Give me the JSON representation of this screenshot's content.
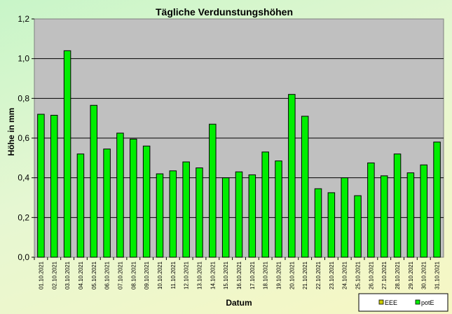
{
  "chart_data": {
    "type": "bar",
    "title": "Tägliche Verdunstungshöhen",
    "xlabel": "Datum",
    "ylabel": "Höhe in mm",
    "ylim": [
      0,
      1.2
    ],
    "yticks": [
      "0,0",
      "0,2",
      "0,4",
      "0,6",
      "0,8",
      "1,0",
      "1,2"
    ],
    "grid": true,
    "legend_position": "bottom-right",
    "categories": [
      "01.10.2021",
      "02.10.2021",
      "03.10.2021",
      "04.10.2021",
      "05.10.2021",
      "06.10.2021",
      "07.10.2021",
      "08.10.2021",
      "09.10.2021",
      "10.10.2021",
      "11.10.2021",
      "12.10.2021",
      "13.10.2021",
      "14.10.2021",
      "15.10.2021",
      "16.10.2021",
      "17.10.2021",
      "18.10.2021",
      "19.10.2021",
      "20.10.2021",
      "21.10.2021",
      "22.10.2021",
      "23.10.2021",
      "24.10.2021",
      "25.10.2021",
      "26.10.2021",
      "27.10.2021",
      "28.10.2021",
      "29.10.2021",
      "30.10.2021",
      "31.10.2021"
    ],
    "series": [
      {
        "name": "EEE",
        "color": "#cccc00",
        "values": [
          null,
          null,
          null,
          null,
          null,
          null,
          null,
          null,
          null,
          null,
          null,
          null,
          null,
          null,
          null,
          null,
          null,
          null,
          null,
          null,
          null,
          null,
          null,
          null,
          null,
          null,
          null,
          null,
          null,
          null,
          null
        ]
      },
      {
        "name": "potE",
        "color": "#00ee00",
        "values": [
          0.72,
          0.715,
          1.04,
          0.52,
          0.765,
          0.545,
          0.625,
          0.595,
          0.56,
          0.42,
          0.435,
          0.48,
          0.45,
          0.67,
          0.4,
          0.43,
          0.415,
          0.53,
          0.485,
          0.82,
          0.71,
          0.345,
          0.325,
          0.4,
          0.31,
          0.475,
          0.41,
          0.52,
          0.425,
          0.465,
          0.58
        ]
      }
    ]
  },
  "colors": {
    "plot_background": "#c0c0c0",
    "gridline": "#000000",
    "bar_border": "#000000"
  }
}
